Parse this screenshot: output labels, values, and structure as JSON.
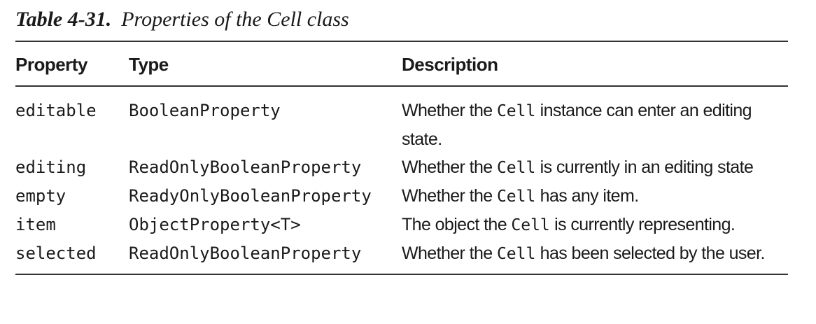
{
  "caption": {
    "number": "Table 4-31.",
    "title": "Properties of the Cell class"
  },
  "table": {
    "headers": [
      "Property",
      "Type",
      "Description"
    ],
    "rows": [
      {
        "property": "editable",
        "type": "BooleanProperty",
        "desc_before": "Whether the ",
        "desc_code": "Cell",
        "desc_after": " instance can enter an editing state."
      },
      {
        "property": "editing",
        "type": "ReadOnlyBooleanProperty",
        "desc_before": "Whether the ",
        "desc_code": "Cell",
        "desc_after": " is currently in an editing state"
      },
      {
        "property": "empty",
        "type": "ReadyOnlyBooleanProperty",
        "desc_before": "Whether the ",
        "desc_code": "Cell",
        "desc_after": " has any item."
      },
      {
        "property": "item",
        "type": "ObjectProperty<T>",
        "desc_before": "The object the ",
        "desc_code": "Cell",
        "desc_after": " is currently representing."
      },
      {
        "property": "selected",
        "type": "ReadOnlyBooleanProperty",
        "desc_before": "Whether the ",
        "desc_code": "Cell",
        "desc_after": " has been selected by the user."
      }
    ]
  }
}
